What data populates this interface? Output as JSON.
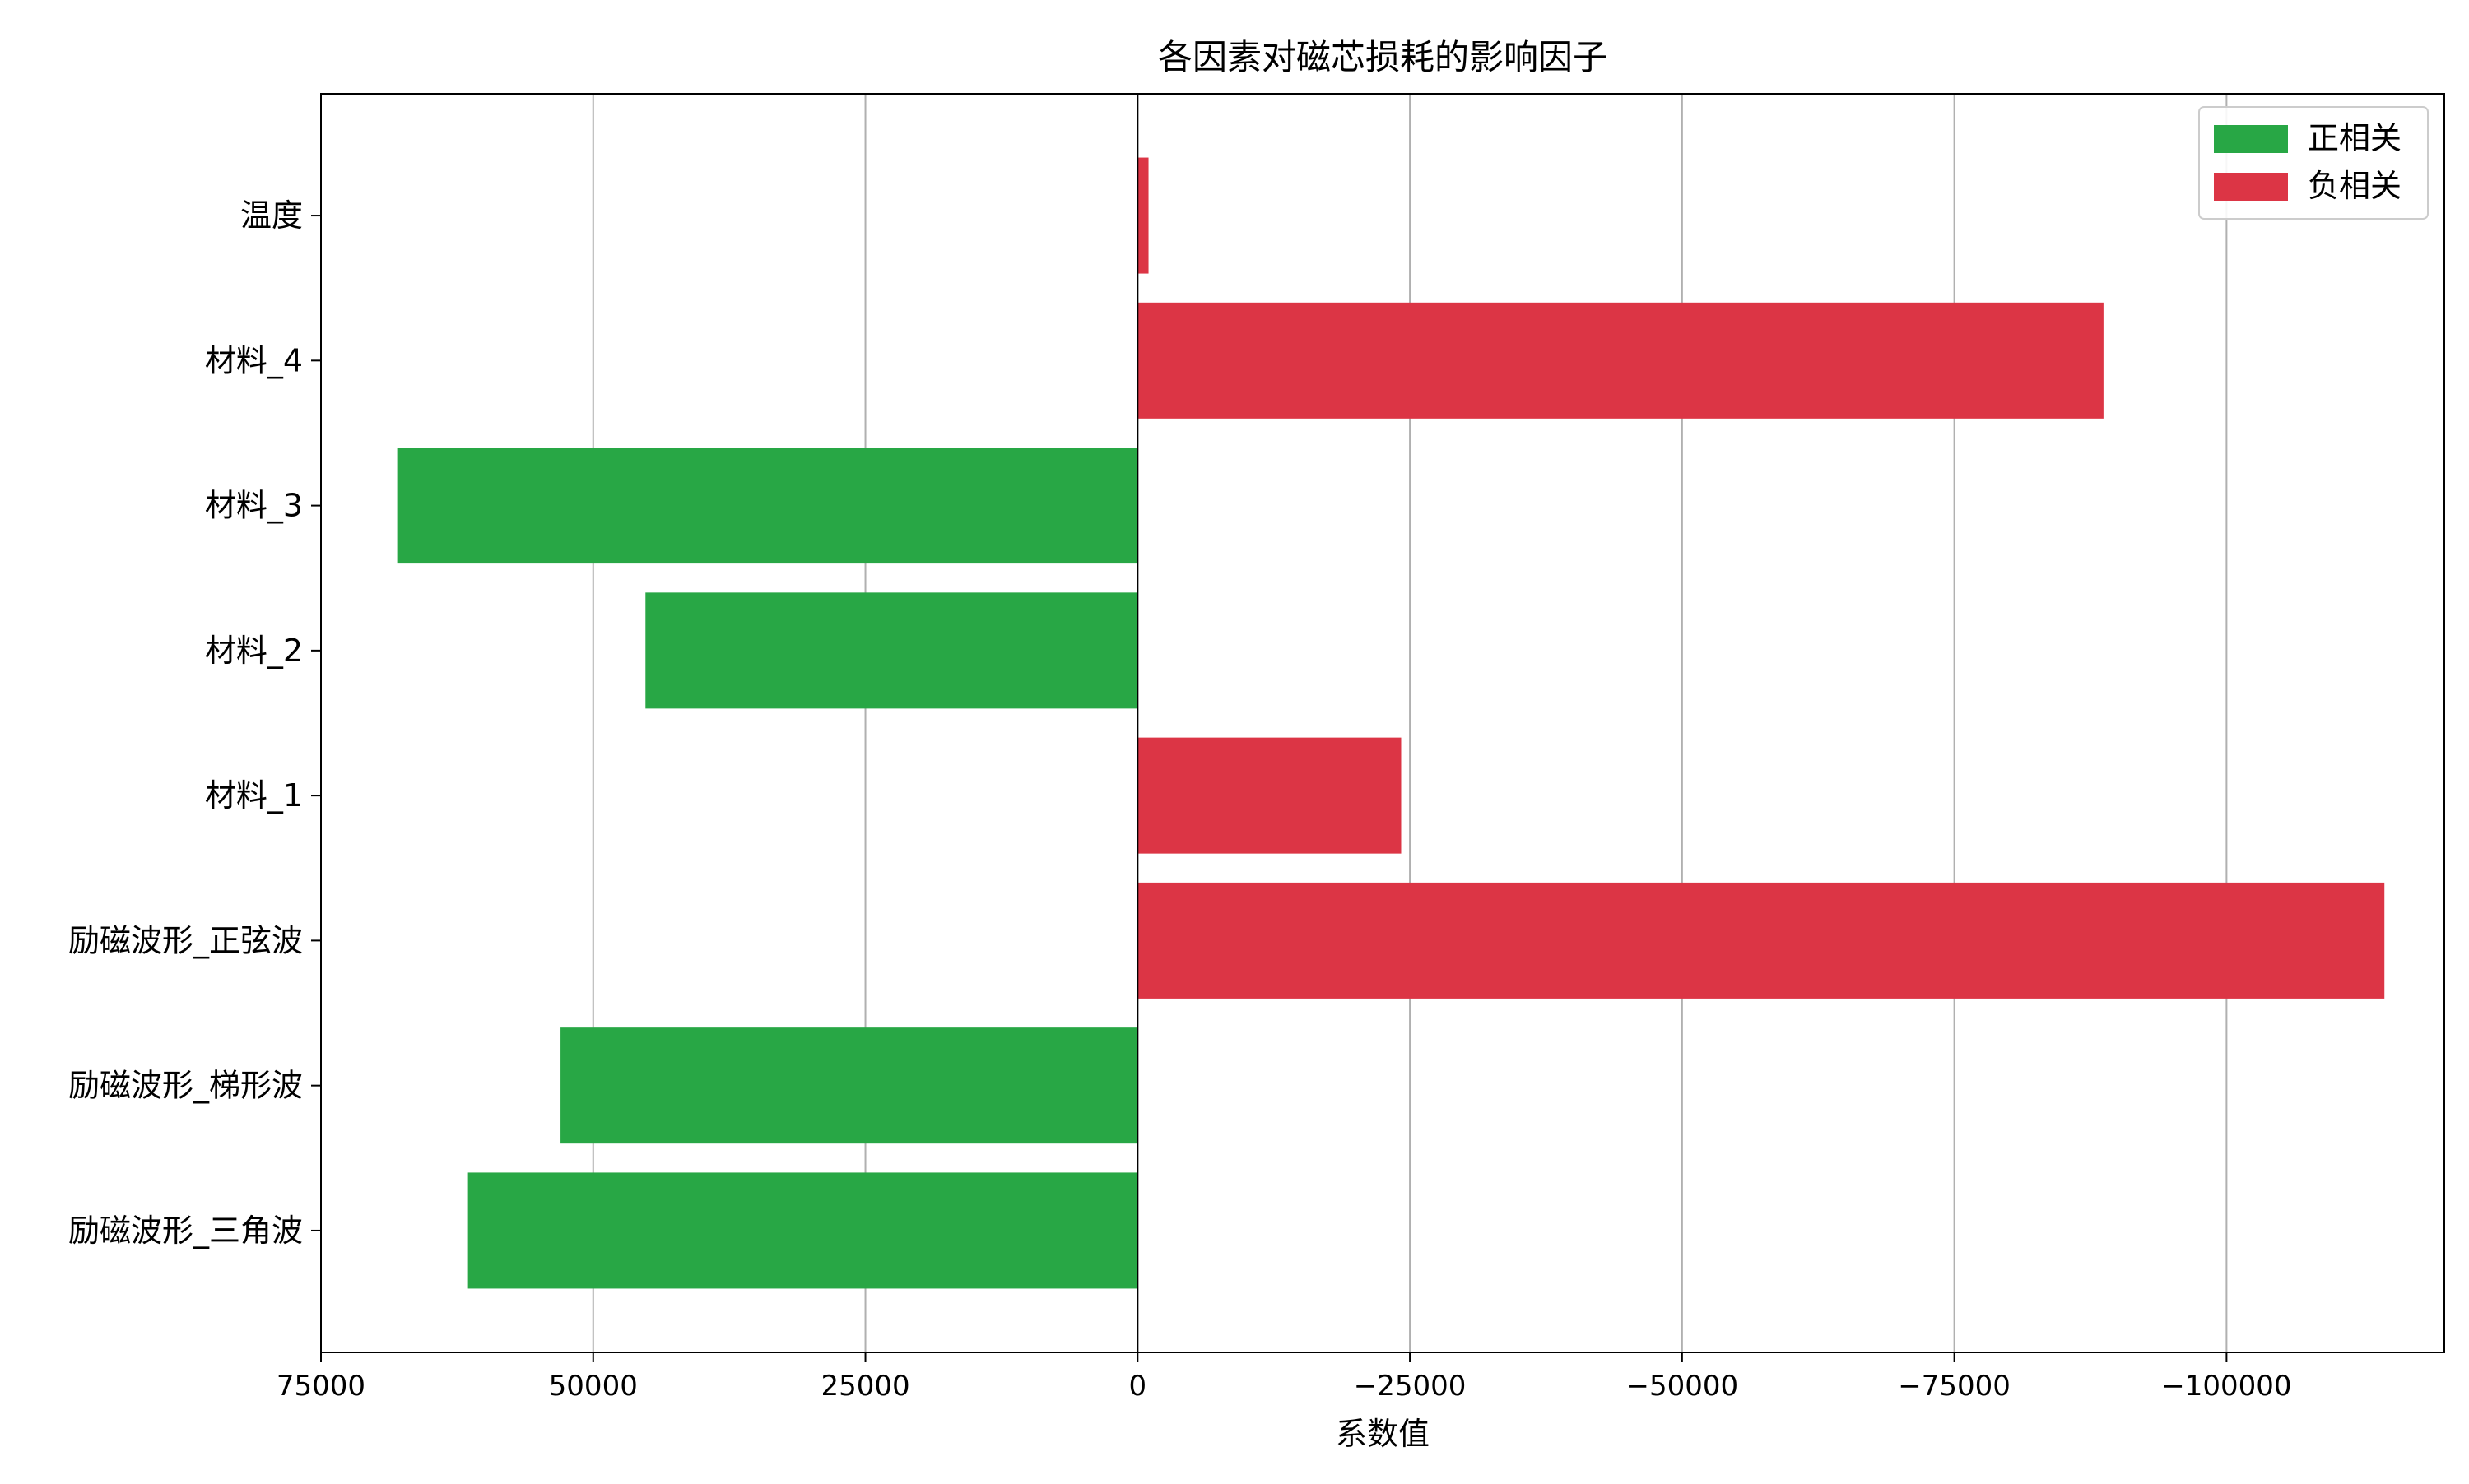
{
  "chart_data": {
    "type": "bar",
    "orientation": "horizontal",
    "title": "各因素对磁芯损耗的影响因子",
    "xlabel": "系数值",
    "ylabel": "",
    "x_axis_inverted": true,
    "xlim": [
      75000,
      -120000
    ],
    "xticks": [
      75000,
      50000,
      25000,
      0,
      -25000,
      -50000,
      -75000,
      -100000
    ],
    "xtick_labels": [
      "75000",
      "50000",
      "25000",
      "0",
      "−25000",
      "−50000",
      "−75000",
      "−100000"
    ],
    "grid": "vertical",
    "legend_position": "top-right",
    "categories": [
      "励磁波形_三角波",
      "励磁波形_梯形波",
      "励磁波形_正弦波",
      "材料_1",
      "材料_2",
      "材料_3",
      "材料_4",
      "温度"
    ],
    "values": [
      61500,
      53000,
      -114500,
      -24200,
      45200,
      68000,
      -88700,
      -1000
    ],
    "legend": [
      {
        "label": "正相关",
        "color": "#28a745"
      },
      {
        "label": "负相关",
        "color": "#dc3545"
      }
    ],
    "colors": {
      "positive": "#28a745",
      "negative": "#dc3545",
      "grid": "#b0b0b0",
      "axis": "#000000"
    }
  }
}
